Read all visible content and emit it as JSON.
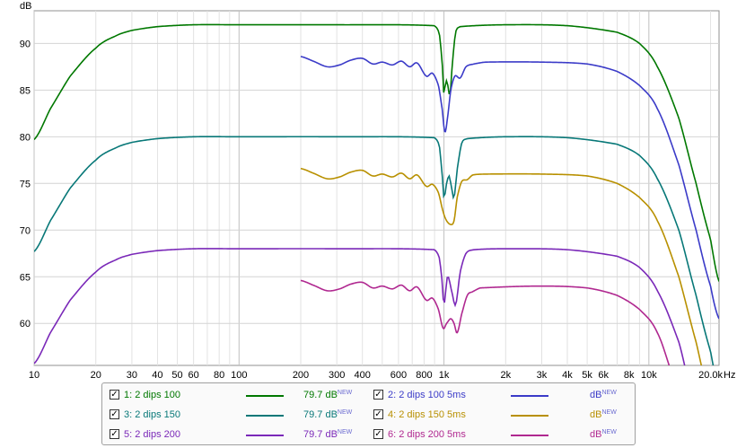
{
  "chart_data": {
    "type": "line",
    "ylabel": "dB",
    "xunit": "Hz",
    "xscale": "log",
    "xlim": [
      10,
      22000
    ],
    "ylim": [
      55.5,
      93.5
    ],
    "yticks": [
      60,
      65,
      70,
      75,
      80,
      85,
      90
    ],
    "xticks": [
      {
        "v": 10,
        "label": "10"
      },
      {
        "v": 20,
        "label": "20"
      },
      {
        "v": 30,
        "label": "30"
      },
      {
        "v": 40,
        "label": "40"
      },
      {
        "v": 50,
        "label": "50"
      },
      {
        "v": 60,
        "label": "60"
      },
      {
        "v": 80,
        "label": "80"
      },
      {
        "v": 100,
        "label": "100"
      },
      {
        "v": 200,
        "label": "200"
      },
      {
        "v": 300,
        "label": "300"
      },
      {
        "v": 400,
        "label": "400"
      },
      {
        "v": 600,
        "label": "600"
      },
      {
        "v": 800,
        "label": "800"
      },
      {
        "v": 1000,
        "label": "1k"
      },
      {
        "v": 2000,
        "label": "2k"
      },
      {
        "v": 3000,
        "label": "3k"
      },
      {
        "v": 4000,
        "label": "4k"
      },
      {
        "v": 5000,
        "label": "5k"
      },
      {
        "v": 6000,
        "label": "6k"
      },
      {
        "v": 8000,
        "label": "8k"
      },
      {
        "v": 10000,
        "label": "10k"
      },
      {
        "v": 20000,
        "label": "20.0k"
      }
    ],
    "grid": true,
    "series": [
      {
        "name": "1: 2 dips 100",
        "color": "#007800",
        "legend_value": "79.7 dB",
        "points": [
          [
            10,
            79.7
          ],
          [
            12,
            83
          ],
          [
            15,
            86.5
          ],
          [
            20,
            89.5
          ],
          [
            25,
            90.8
          ],
          [
            30,
            91.4
          ],
          [
            40,
            91.8
          ],
          [
            60,
            92
          ],
          [
            100,
            92
          ],
          [
            300,
            92
          ],
          [
            900,
            91.9
          ],
          [
            950,
            91
          ],
          [
            980,
            88
          ],
          [
            1000,
            84.5
          ],
          [
            1020,
            86
          ],
          [
            1045,
            85.5
          ],
          [
            1070,
            84.5
          ],
          [
            1100,
            88
          ],
          [
            1140,
            91.2
          ],
          [
            1200,
            91.8
          ],
          [
            2000,
            92
          ],
          [
            4000,
            91.9
          ],
          [
            7000,
            91.2
          ],
          [
            9000,
            90
          ],
          [
            11000,
            87.5
          ],
          [
            14000,
            82
          ],
          [
            17000,
            75
          ],
          [
            20000,
            69
          ],
          [
            22000,
            64.5
          ]
        ]
      },
      {
        "name": "2: 2 dips 100 5ms",
        "color": "#3b3bc8",
        "legend_value": "",
        "points": [
          [
            200,
            88.6
          ],
          [
            230,
            88.1
          ],
          [
            270,
            87.5
          ],
          [
            310,
            87.7
          ],
          [
            350,
            88.2
          ],
          [
            400,
            88.4
          ],
          [
            450,
            87.8
          ],
          [
            500,
            88
          ],
          [
            560,
            87.7
          ],
          [
            620,
            88.1
          ],
          [
            680,
            87.5
          ],
          [
            740,
            87.9
          ],
          [
            820,
            86.5
          ],
          [
            880,
            86.8
          ],
          [
            940,
            85.5
          ],
          [
            980,
            83
          ],
          [
            1010,
            80.5
          ],
          [
            1040,
            82
          ],
          [
            1080,
            85
          ],
          [
            1130,
            86.5
          ],
          [
            1200,
            86.3
          ],
          [
            1280,
            87.5
          ],
          [
            1400,
            87.8
          ],
          [
            1600,
            88
          ],
          [
            3000,
            88
          ],
          [
            5000,
            87.8
          ],
          [
            7000,
            87
          ],
          [
            9000,
            85.5
          ],
          [
            11000,
            83
          ],
          [
            14000,
            77
          ],
          [
            17000,
            70
          ],
          [
            20000,
            64
          ],
          [
            22000,
            60.5
          ]
        ]
      },
      {
        "name": "3: 2 dips 150",
        "color": "#087878",
        "legend_value": "79.7 dB",
        "points": [
          [
            10,
            67.7
          ],
          [
            12,
            71
          ],
          [
            15,
            74.5
          ],
          [
            20,
            77.5
          ],
          [
            25,
            78.8
          ],
          [
            30,
            79.4
          ],
          [
            40,
            79.8
          ],
          [
            60,
            80
          ],
          [
            100,
            80
          ],
          [
            300,
            80
          ],
          [
            900,
            79.9
          ],
          [
            950,
            79
          ],
          [
            980,
            76
          ],
          [
            1000,
            73.5
          ],
          [
            1030,
            75
          ],
          [
            1060,
            75.8
          ],
          [
            1090,
            74.5
          ],
          [
            1120,
            73.5
          ],
          [
            1160,
            76.5
          ],
          [
            1220,
            79.3
          ],
          [
            1300,
            79.8
          ],
          [
            2000,
            80
          ],
          [
            4000,
            79.9
          ],
          [
            7000,
            79.2
          ],
          [
            9000,
            78
          ],
          [
            11000,
            75.5
          ],
          [
            14000,
            70
          ],
          [
            17000,
            63
          ],
          [
            20000,
            57
          ],
          [
            22000,
            53
          ]
        ]
      },
      {
        "name": "4: 2 dips 150 5ms",
        "color": "#b89000",
        "legend_value": "",
        "points": [
          [
            200,
            76.6
          ],
          [
            230,
            76.1
          ],
          [
            270,
            75.5
          ],
          [
            310,
            75.7
          ],
          [
            350,
            76.2
          ],
          [
            400,
            76.4
          ],
          [
            450,
            75.8
          ],
          [
            500,
            76
          ],
          [
            560,
            75.7
          ],
          [
            620,
            76.1
          ],
          [
            680,
            75.5
          ],
          [
            740,
            75.9
          ],
          [
            820,
            74.7
          ],
          [
            880,
            74.9
          ],
          [
            940,
            74
          ],
          [
            990,
            72
          ],
          [
            1030,
            71
          ],
          [
            1080,
            70.6
          ],
          [
            1120,
            71
          ],
          [
            1160,
            73.5
          ],
          [
            1220,
            75.2
          ],
          [
            1300,
            75.4
          ],
          [
            1380,
            75.9
          ],
          [
            1600,
            76
          ],
          [
            3000,
            76
          ],
          [
            5000,
            75.8
          ],
          [
            7000,
            75
          ],
          [
            9000,
            73.5
          ],
          [
            11000,
            71
          ],
          [
            14000,
            65
          ],
          [
            17000,
            58
          ],
          [
            20000,
            52
          ]
        ]
      },
      {
        "name": "5: 2 dips 200",
        "color": "#7a28b8",
        "legend_value": "79.7 dB",
        "points": [
          [
            10,
            55.7
          ],
          [
            12,
            59
          ],
          [
            15,
            62.5
          ],
          [
            20,
            65.5
          ],
          [
            25,
            66.8
          ],
          [
            30,
            67.4
          ],
          [
            40,
            67.8
          ],
          [
            60,
            68
          ],
          [
            100,
            68
          ],
          [
            300,
            68
          ],
          [
            900,
            67.9
          ],
          [
            950,
            67
          ],
          [
            980,
            64.5
          ],
          [
            1000,
            62
          ],
          [
            1040,
            65
          ],
          [
            1090,
            63.5
          ],
          [
            1140,
            62
          ],
          [
            1200,
            65.5
          ],
          [
            1280,
            67.5
          ],
          [
            1400,
            67.9
          ],
          [
            2000,
            68
          ],
          [
            4000,
            67.9
          ],
          [
            7000,
            67.2
          ],
          [
            9000,
            66
          ],
          [
            11000,
            63.5
          ],
          [
            14000,
            58
          ],
          [
            17000,
            51
          ]
        ]
      },
      {
        "name": "6: 2 dips 200 5ms",
        "color": "#b02890",
        "legend_value": "",
        "points": [
          [
            200,
            64.6
          ],
          [
            230,
            64.1
          ],
          [
            270,
            63.5
          ],
          [
            310,
            63.7
          ],
          [
            350,
            64.2
          ],
          [
            400,
            64.4
          ],
          [
            450,
            63.8
          ],
          [
            500,
            64
          ],
          [
            560,
            63.7
          ],
          [
            620,
            64.1
          ],
          [
            680,
            63.5
          ],
          [
            740,
            63.9
          ],
          [
            820,
            62.5
          ],
          [
            880,
            62.7
          ],
          [
            940,
            61.5
          ],
          [
            990,
            59.5
          ],
          [
            1030,
            60
          ],
          [
            1080,
            60.5
          ],
          [
            1120,
            60
          ],
          [
            1160,
            59
          ],
          [
            1220,
            61
          ],
          [
            1300,
            63
          ],
          [
            1380,
            63.4
          ],
          [
            1500,
            63.8
          ],
          [
            3000,
            64
          ],
          [
            5000,
            63.8
          ],
          [
            7000,
            63
          ],
          [
            9000,
            61.5
          ],
          [
            11000,
            59
          ],
          [
            14000,
            53
          ]
        ]
      }
    ]
  },
  "legend": {
    "new_badge": "NEW",
    "rows": [
      {
        "left": {
          "label": "1: 2 dips 100",
          "value": "79.7 dB"
        },
        "right": {
          "label": "2: 2 dips 100 5ms",
          "value": "dB"
        }
      },
      {
        "left": {
          "label": "3: 2 dips 150",
          "value": "79.7 dB"
        },
        "right": {
          "label": "4: 2 dips 150 5ms",
          "value": "dB"
        }
      },
      {
        "left": {
          "label": "5: 2 dips 200",
          "value": "79.7 dB"
        },
        "right": {
          "label": "6: 2 dips 200 5ms",
          "value": "dB"
        }
      }
    ]
  }
}
